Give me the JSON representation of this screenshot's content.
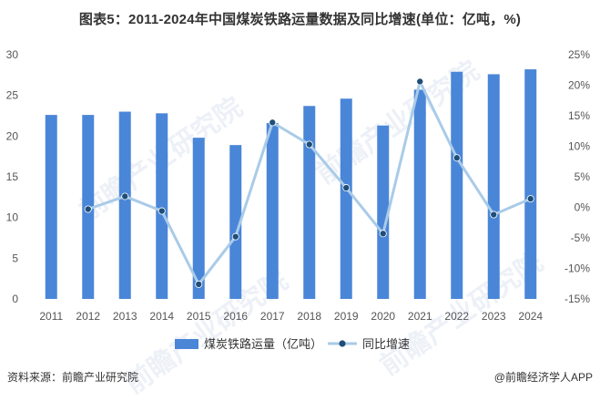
{
  "title": "图表5：2011-2024年中国煤炭铁路运量数据及同比增速(单位：亿吨，%)",
  "source": "资料来源：前瞻产业研究院",
  "brand": "@前瞻经济学人APP",
  "watermark_text": "前瞻产业研究院",
  "colors": {
    "bar": "#4a86d8",
    "line": "#a9cbe8",
    "marker": "#1f4e79"
  },
  "chart_data": {
    "type": "bar+line",
    "categories": [
      "2011",
      "2012",
      "2013",
      "2014",
      "2015",
      "2016",
      "2017",
      "2018",
      "2019",
      "2020",
      "2021",
      "2022",
      "2023",
      "2024"
    ],
    "series": [
      {
        "name": "煤炭铁路运量（亿吨）",
        "type": "bar",
        "axis": "left",
        "values": [
          22.6,
          22.6,
          23.0,
          22.8,
          19.8,
          18.9,
          21.6,
          23.7,
          24.6,
          21.3,
          25.7,
          27.9,
          27.6,
          28.2
        ]
      },
      {
        "name": "同比增速",
        "type": "line",
        "axis": "right",
        "values": [
          null,
          -0.3,
          1.8,
          -0.6,
          -12.6,
          -4.8,
          13.9,
          10.3,
          3.2,
          -4.3,
          20.6,
          8.1,
          -1.2,
          1.4
        ]
      }
    ],
    "left_axis": {
      "min": 0,
      "max": 30,
      "ticks": [
        0,
        5,
        10,
        15,
        20,
        25,
        30
      ]
    },
    "right_axis": {
      "min": -15,
      "max": 25,
      "ticks": [
        "-15%",
        "-10%",
        "-5%",
        "0%",
        "5%",
        "10%",
        "15%",
        "20%",
        "25%"
      ]
    },
    "legend_position": "bottom",
    "grid": false
  }
}
